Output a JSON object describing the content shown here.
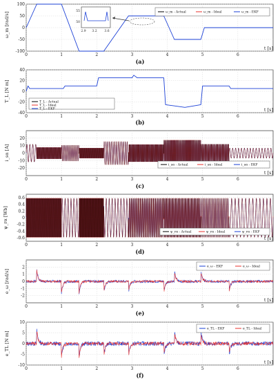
{
  "colors": {
    "actual": "#000000",
    "ideal": "#e8322e",
    "ekf": "#1a3fd6",
    "grid": "#d9d9d9",
    "axis": "#333333"
  },
  "chart_data": [
    {
      "id": "a",
      "type": "line",
      "caption": "(a)",
      "ylabel": "ω_m [rad/s]",
      "xlabel": "t [s]",
      "xlim": [
        0,
        7
      ],
      "ylim": [
        -100,
        100
      ],
      "xticks": [
        0,
        1,
        2,
        3,
        4,
        5,
        6
      ],
      "yticks": [
        -100,
        -50,
        0,
        50,
        100
      ],
      "legend": [
        "ω_m - Actual",
        "ω_m - Ideal",
        "ω_m - EKF"
      ],
      "series": [
        {
          "name": "ω_m - EKF",
          "x": [
            0,
            0.3,
            1.0,
            1.5,
            2.2,
            2.9,
            3.3,
            3.9,
            4.2,
            4.95,
            5.05,
            5.75,
            7.0
          ],
          "y": [
            0,
            100,
            100,
            -100,
            -100,
            50,
            50,
            50,
            -50,
            -50,
            0,
            0,
            0
          ]
        }
      ],
      "inset": {
        "xticks": [
          "2.9",
          "3.2",
          "3.6"
        ],
        "yticks": [
          "55",
          "50"
        ]
      }
    },
    {
      "id": "b",
      "type": "line",
      "caption": "(b)",
      "ylabel": "T_L [N m]",
      "xlabel": "t [s]",
      "xlim": [
        0,
        7
      ],
      "ylim": [
        -40,
        40
      ],
      "xticks": [
        0,
        1,
        2,
        3,
        4,
        5,
        6
      ],
      "yticks": [
        -40,
        -20,
        0,
        20,
        40
      ],
      "legend": [
        "T_L - Actual",
        "T_L - Ideal",
        "T_L - EKF"
      ],
      "series": [
        {
          "name": "T_L - EKF",
          "x": [
            0,
            0.05,
            0.1,
            1.05,
            1.1,
            2.0,
            2.05,
            3.0,
            3.05,
            3.15,
            3.3,
            3.9,
            3.95,
            4.5,
            4.95,
            5.0,
            5.05,
            5.75,
            5.8,
            7.0
          ],
          "y": [
            0,
            10,
            5,
            5,
            10,
            10,
            25,
            25,
            30,
            25,
            25,
            25,
            -25,
            -30,
            -25,
            10,
            10,
            10,
            5,
            5
          ]
        }
      ]
    },
    {
      "id": "c",
      "type": "line",
      "caption": "(c)",
      "ylabel": "i_sα [A]",
      "xlabel": "t [s]",
      "xlim": [
        0,
        7
      ],
      "ylim": [
        -30,
        30
      ],
      "xticks": [
        0,
        1,
        2,
        3,
        4,
        5,
        6
      ],
      "yticks": [
        -20,
        -10,
        0,
        10,
        20
      ],
      "legend": [
        "i_sα - Actual",
        "i_sα - Ideal",
        "i_sα - EKF"
      ]
    },
    {
      "id": "d",
      "type": "line",
      "caption": "(d)",
      "ylabel": "ψ_rα [Wb]",
      "xlabel": "t [s]",
      "xlim": [
        0,
        7
      ],
      "ylim": [
        -0.7,
        0.7
      ],
      "xticks": [
        0,
        1,
        2,
        3,
        4,
        5,
        6
      ],
      "yticks": [
        -0.6,
        -0.4,
        -0.2,
        0,
        0.2,
        0.4,
        0.6
      ],
      "legend": [
        "ψ_rα - Actual",
        "ψ_rα - Ideal",
        "ψ_rα - EKF"
      ]
    },
    {
      "id": "e",
      "type": "line",
      "caption": "(e)",
      "ylabel": "e_ω [rad/s]",
      "xlabel": "t [s]",
      "xlim": [
        0,
        7
      ],
      "ylim": [
        -3,
        3
      ],
      "xticks": [
        0,
        1,
        2,
        3,
        4,
        5,
        6
      ],
      "yticks": [
        -2,
        -1,
        0,
        1,
        2
      ],
      "legend": [
        "e_ω - EKF",
        "e_ω - Ideal"
      ]
    },
    {
      "id": "f",
      "type": "line",
      "caption": "(f)",
      "ylabel": "e_TL [N m]",
      "xlabel": "t [s]",
      "xlim": [
        0,
        7
      ],
      "ylim": [
        -10,
        10
      ],
      "xticks": [
        0,
        1,
        2,
        3,
        4,
        5,
        6
      ],
      "yticks": [
        -10,
        -5,
        0,
        5,
        10
      ],
      "legend": [
        "e_TL - EKF",
        "e_TL - Ideal"
      ]
    }
  ]
}
